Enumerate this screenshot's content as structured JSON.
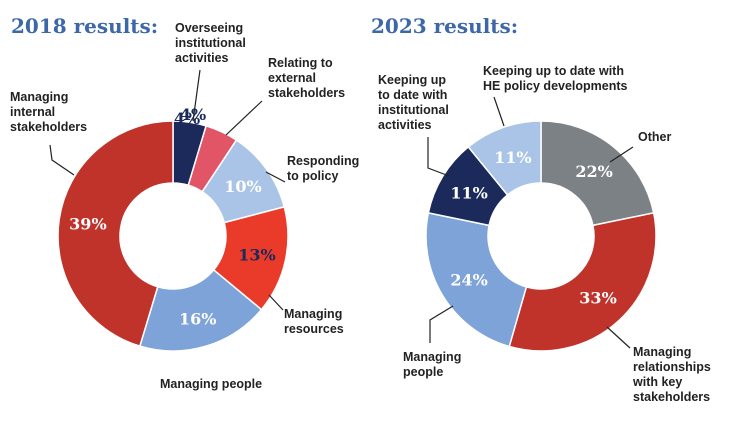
{
  "chart_data": [
    {
      "type": "pie",
      "title": "2018 results:",
      "categories": [
        "Overseeing institutional activities",
        "Relating to external stakeholders",
        "Responding to policy",
        "Managing resources",
        "Managing people",
        "Managing internal stakeholders"
      ],
      "values": [
        4,
        4,
        10,
        13,
        16,
        39
      ],
      "value_labels": [
        "4%",
        "4%",
        "10%",
        "13%",
        "16%",
        "39%"
      ],
      "colors": [
        "#1b2a5a",
        "#e25566",
        "#a9c4e6",
        "#e93a2a",
        "#7ea3d8",
        "#c0332b"
      ],
      "label_colors": [
        "#1b2a5a",
        "#1b2a5a",
        "#ffffff",
        "#1b2a5a",
        "#ffffff",
        "#ffffff"
      ],
      "donut": true
    },
    {
      "type": "pie",
      "title": "2023 results:",
      "categories": [
        "Other",
        "Managing relationships with key stakeholders",
        "Managing people",
        "Keeping up to date with institutional activities",
        "Keeping up to date with HE policy developments"
      ],
      "values": [
        22,
        33,
        24,
        11,
        11
      ],
      "value_labels": [
        "22%",
        "33%",
        "24%",
        "11%",
        "11%"
      ],
      "colors": [
        "#7b8185",
        "#c0332b",
        "#7ea3d8",
        "#1b2a5a",
        "#a9c4e6"
      ],
      "label_colors": [
        "#ffffff",
        "#ffffff",
        "#ffffff",
        "#ffffff",
        "#ffffff"
      ],
      "donut": true
    }
  ]
}
